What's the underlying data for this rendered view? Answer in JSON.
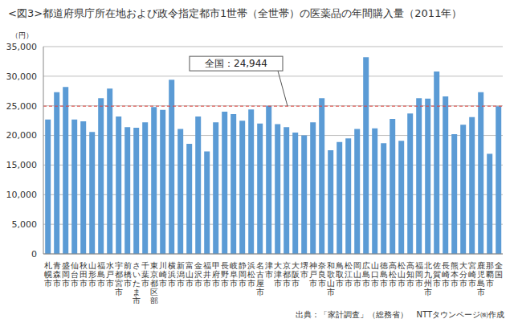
{
  "chart_data": {
    "type": "bar",
    "title": "<図3>都道府県庁所在地および政令指定都市1世帯（全世帯）の医薬品の年間購入量（2011年）",
    "y_label": "（円）",
    "source": "出典：「家計調査」（総務省）　NTTタウンページ㈱作成",
    "categories": [
      "札幌市",
      "青森市",
      "盛岡市",
      "仙台市",
      "秋田市",
      "山形市",
      "福島市",
      "水戸市",
      "宇都宮市",
      "前橋市",
      "さいたま市",
      "千葉市",
      "東京都区部",
      "川崎市",
      "横浜市",
      "新潟市",
      "富山市",
      "金沢市",
      "福井市",
      "甲府市",
      "長野市",
      "岐阜市",
      "静岡市",
      "浜松市",
      "名古屋市",
      "津市",
      "大津市",
      "京都市",
      "大阪市",
      "堺市",
      "神戸市",
      "奈良市",
      "和歌山市",
      "鳥取市",
      "松江市",
      "岡山市",
      "広島市",
      "山口市",
      "徳島市",
      "高松市",
      "松山市",
      "高知市",
      "福岡市",
      "北九州市",
      "佐賀市",
      "長崎市",
      "熊本市",
      "大分市",
      "宮崎市",
      "鹿児島市",
      "那覇市",
      "全国"
    ],
    "values": [
      22700,
      27300,
      28200,
      22700,
      22400,
      20600,
      26300,
      27900,
      23200,
      21400,
      21300,
      22200,
      24800,
      24300,
      29400,
      21100,
      18600,
      23200,
      17300,
      22200,
      24000,
      23600,
      22500,
      24400,
      22000,
      25000,
      21900,
      21400,
      20500,
      20000,
      22200,
      26300,
      17500,
      18900,
      19500,
      21100,
      33200,
      21200,
      18700,
      22800,
      19100,
      23700,
      26300,
      26200,
      30800,
      26600,
      20200,
      21800,
      23100,
      27300,
      16900,
      24944
    ],
    "color": "#5b9bd5",
    "reference_line": {
      "value": 24944,
      "label": "全国：24,944",
      "color": "#e0403a",
      "line_style": "dashed"
    },
    "ylim": [
      0,
      35000
    ],
    "yticks": [
      0,
      {
        "value": 5000,
        "label": "5,000"
      },
      {
        "value": 10000,
        "label": "10,000"
      },
      {
        "value": 15000,
        "label": "15,000"
      },
      {
        "value": 20000,
        "label": "20,000"
      },
      {
        "value": 25000,
        "label": "25,000"
      },
      {
        "value": 30000,
        "label": "30,000"
      },
      {
        "value": 35000,
        "label": "35,000"
      }
    ],
    "grid": true
  }
}
